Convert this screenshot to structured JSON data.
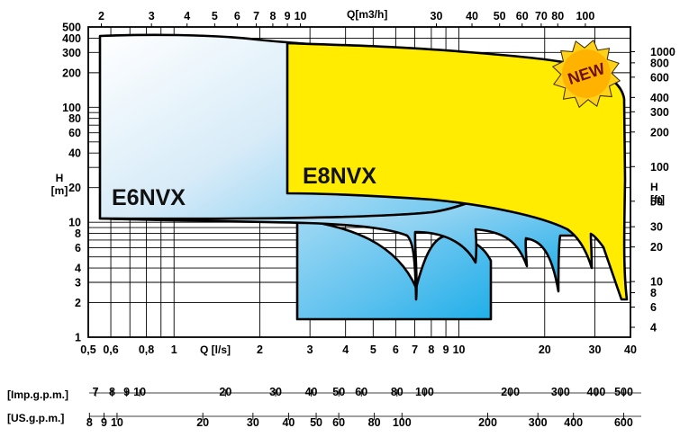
{
  "chart_data": {
    "type": "area",
    "title": "",
    "xlabel": "Q [l/s]",
    "ylabel": "H\n[m]",
    "x_scale": "log",
    "y_scale": "log",
    "xlim": [
      0.5,
      40
    ],
    "ylim": [
      1,
      500
    ],
    "x_ticks": [
      "0,5",
      "0,6",
      "0,8",
      "1",
      "2",
      "3",
      "4",
      "5",
      "6",
      "7",
      "8",
      "9",
      "10",
      "20",
      "30",
      "40"
    ],
    "y_ticks": [
      "1",
      "2",
      "3",
      "4",
      "6",
      "8",
      "10",
      "20",
      "40",
      "60",
      "80",
      "100",
      "200",
      "300",
      "400",
      "500"
    ],
    "top_axis": {
      "label": "Q[m3/h]",
      "ticks": [
        "2",
        "3",
        "4",
        "5",
        "6",
        "7",
        "8",
        "9",
        "10",
        "30",
        "40",
        "50",
        "60",
        "70",
        "80",
        "100"
      ]
    },
    "right_axis": {
      "label": "H\n[ft]",
      "ticks": [
        "1000",
        "800",
        "600",
        "400",
        "300",
        "200",
        "100",
        "50",
        "30",
        "20",
        "10",
        "8",
        "6",
        "4"
      ]
    },
    "secondary_axes": [
      {
        "label": "[Imp.g.p.m.]",
        "ticks": [
          "7",
          "8",
          "9",
          "10",
          "20",
          "30",
          "40",
          "50",
          "60",
          "80",
          "100",
          "200",
          "300",
          "400",
          "500"
        ]
      },
      {
        "label": "[US.g.p.m.]",
        "ticks": [
          "8",
          "9",
          "10",
          "20",
          "30",
          "40",
          "50",
          "60",
          "80",
          "100",
          "200",
          "300",
          "400",
          "600"
        ]
      }
    ],
    "series": [
      {
        "name": "E6NVX",
        "color": "#1ab0ea",
        "upper": {
          "x": [
            0.55,
            1.0,
            1.6,
            2.5,
            4,
            6,
            10,
            20,
            25
          ],
          "y": [
            440,
            450,
            440,
            400,
            370,
            350,
            320,
            280,
            235
          ]
        },
        "lower": {
          "x": [
            0.55,
            1.0,
            2.5,
            5,
            8,
            12,
            20,
            27
          ],
          "y": [
            11,
            10.8,
            10.4,
            9.6,
            8.8,
            8,
            7.2,
            6.5
          ]
        }
      },
      {
        "name": "E8NVX",
        "color": "#ffee00",
        "upper": {
          "x": [
            2.5,
            5,
            10,
            20,
            25,
            30,
            34,
            36
          ],
          "y": [
            370,
            345,
            310,
            265,
            225,
            170,
            125,
            100
          ]
        },
        "lower": {
          "x": [
            2.5,
            5,
            10,
            20,
            28,
            34,
            36
          ],
          "y": [
            17.5,
            16.8,
            15.2,
            13,
            10.5,
            6,
            2.1
          ]
        }
      }
    ],
    "annotations": [
      "E6NVX",
      "E8NVX",
      "NEW"
    ],
    "grid": true,
    "legend": "none"
  }
}
